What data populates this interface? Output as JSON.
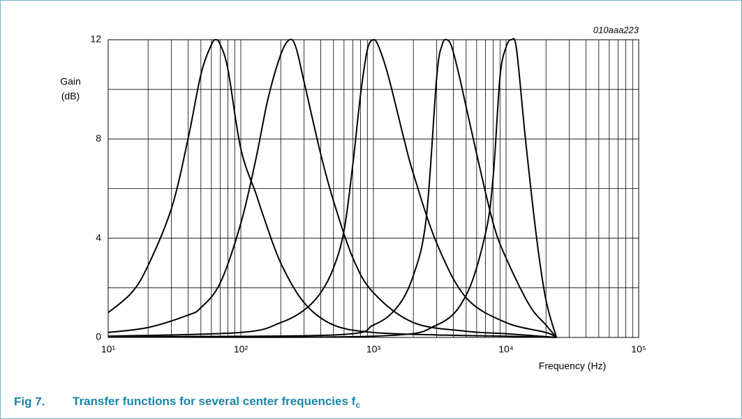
{
  "chart_data": {
    "type": "line",
    "id_label": "010aaa223",
    "ylabel": [
      "Gain",
      "(dB)"
    ],
    "xlabel": "Frequency (Hz)",
    "caption_label": "Fig 7.",
    "caption": "Transfer functions for several center frequencies f",
    "caption_subscript": "c",
    "xscale": "log",
    "grid": true,
    "xlim": [
      10,
      100000
    ],
    "ylim": [
      0,
      12
    ],
    "xticks": [
      {
        "value": 10,
        "label": "10¹"
      },
      {
        "value": 100,
        "label": "10²"
      },
      {
        "value": 1000,
        "label": "10³"
      },
      {
        "value": 10000,
        "label": "10⁴"
      },
      {
        "value": 100000,
        "label": "10⁵"
      }
    ],
    "yticks": [
      0,
      4,
      8,
      12
    ],
    "yminor": [
      2,
      6,
      10
    ],
    "series": [
      {
        "color": "#000000",
        "x": [
          10,
          15,
          20,
          30,
          40,
          50,
          60,
          65,
          70,
          80,
          100,
          130,
          150,
          200,
          300,
          500,
          1000,
          3000,
          10000,
          24000
        ],
        "values": [
          1.0,
          1.8,
          2.9,
          5.2,
          8.0,
          10.6,
          11.8,
          12,
          11.8,
          10.8,
          7.6,
          5.8,
          4.8,
          3.0,
          1.4,
          0.5,
          0.2,
          0.1,
          0.05,
          0
        ]
      },
      {
        "color": "#000000",
        "x": [
          10,
          20,
          40,
          50,
          70,
          100,
          130,
          160,
          200,
          233,
          260,
          300,
          400,
          500,
          700,
          1000,
          2000,
          5000,
          10000,
          24000
        ],
        "values": [
          0.2,
          0.4,
          0.9,
          1.2,
          2.2,
          4.6,
          7.2,
          9.6,
          11.4,
          12,
          11.7,
          10.3,
          7.4,
          5.5,
          3.2,
          1.8,
          0.6,
          0.25,
          0.15,
          0
        ]
      },
      {
        "color": "#000000",
        "x": [
          10,
          100,
          200,
          300,
          400,
          500,
          600,
          700,
          800,
          900,
          1000,
          1100,
          1300,
          1700,
          2000,
          3000,
          5000,
          10000,
          20000,
          24000
        ],
        "values": [
          0.05,
          0.2,
          0.6,
          1.1,
          1.8,
          2.8,
          4.3,
          7.0,
          9.8,
          11.6,
          12,
          11.7,
          10.5,
          8.0,
          6.6,
          3.8,
          1.6,
          0.6,
          0.2,
          0
        ]
      },
      {
        "color": "#000000",
        "x": [
          10,
          500,
          1000,
          1500,
          2000,
          2500,
          3000,
          3300,
          3570,
          3900,
          4500,
          6000,
          8000,
          10000,
          15000,
          20000,
          24000
        ],
        "values": [
          0.03,
          0.1,
          0.5,
          1.2,
          2.5,
          4.8,
          10.5,
          11.8,
          12,
          11.7,
          10.4,
          7.4,
          4.6,
          3.2,
          1.3,
          0.5,
          0
        ]
      },
      {
        "color": "#000000",
        "x": [
          10,
          1000,
          3000,
          5000,
          7000,
          8000,
          9000,
          10000,
          11000,
          12000,
          14000,
          17000,
          20000,
          24000
        ],
        "values": [
          0.02,
          0.05,
          0.5,
          1.7,
          4.2,
          6.5,
          10.5,
          11.7,
          12,
          11.6,
          8.0,
          4.0,
          1.5,
          0
        ]
      }
    ]
  }
}
